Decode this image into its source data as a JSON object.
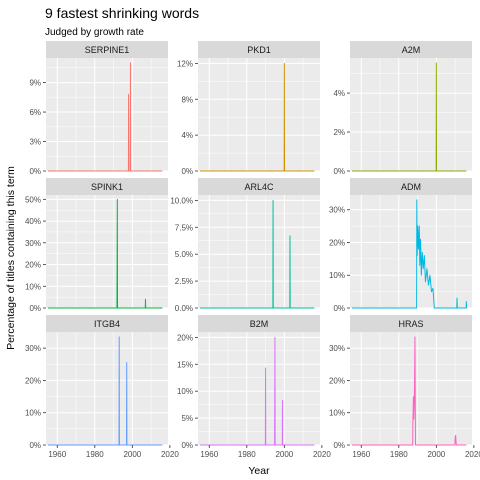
{
  "chart_data": {
    "type": "line",
    "title": "9 fastest shrinking words",
    "subtitle": "Judged by growth rate",
    "xlabel": "Year",
    "ylabel": "Percentage of titles containing this term",
    "xlim": [
      1954,
      2019
    ],
    "x_ticks": [
      1960,
      1980,
      2000,
      2020
    ],
    "x_tick_labels": [
      "1960",
      "1980",
      "2000",
      "2020"
    ],
    "grid": true,
    "legend": "none",
    "panels": [
      {
        "name": "SERPINE1",
        "color": "#F8766D",
        "ylim": [
          0,
          11.5
        ],
        "y_ticks": [
          0,
          3,
          6,
          9
        ],
        "y_tick_labels": [
          "0%",
          "3%",
          "6%",
          "9%"
        ],
        "points": [
          [
            1955,
            0
          ],
          [
            1997.9,
            0
          ],
          [
            1998,
            7.8
          ],
          [
            1998.1,
            0
          ],
          [
            1998.9,
            0
          ],
          [
            1999,
            11
          ],
          [
            1999.1,
            0
          ],
          [
            2016,
            0
          ]
        ]
      },
      {
        "name": "PKD1",
        "color": "#D39200",
        "ylim": [
          0,
          12.6
        ],
        "y_ticks": [
          0,
          4,
          8,
          12
        ],
        "y_tick_labels": [
          "0%",
          "4%",
          "8%",
          "12%"
        ],
        "points": [
          [
            1955,
            0
          ],
          [
            1999.9,
            0
          ],
          [
            2000,
            12
          ],
          [
            2000.1,
            0
          ],
          [
            2016,
            0
          ]
        ]
      },
      {
        "name": "A2M",
        "color": "#93AA00",
        "ylim": [
          0,
          5.8
        ],
        "y_ticks": [
          0,
          2,
          4
        ],
        "y_tick_labels": [
          "0%",
          "2%",
          "4%"
        ],
        "points": [
          [
            1955,
            0
          ],
          [
            1999.9,
            0
          ],
          [
            2000,
            5.55
          ],
          [
            2000.1,
            0
          ],
          [
            2016,
            0
          ]
        ]
      },
      {
        "name": "SPINK1",
        "color": "#00BA38",
        "ylim": [
          0,
          52
        ],
        "y_ticks": [
          0,
          10,
          20,
          30,
          40,
          50
        ],
        "y_tick_labels": [
          "0%",
          "10%",
          "20%",
          "30%",
          "40%",
          "50%"
        ],
        "points": [
          [
            1955,
            0
          ],
          [
            1991.8,
            0
          ],
          [
            1991.9,
            25
          ],
          [
            1992,
            50
          ],
          [
            1992.1,
            0
          ],
          [
            2006.9,
            0
          ],
          [
            2007,
            4
          ],
          [
            2007.1,
            0
          ],
          [
            2016,
            0
          ]
        ]
      },
      {
        "name": "ARL4C",
        "color": "#00C19F",
        "ylim": [
          0,
          10.5
        ],
        "y_ticks": [
          0,
          2.5,
          5,
          7.5,
          10
        ],
        "y_tick_labels": [
          "0.0%",
          "2.5%",
          "5.0%",
          "7.5%",
          "10.0%"
        ],
        "points": [
          [
            1955,
            0
          ],
          [
            1993.9,
            0
          ],
          [
            1994,
            10
          ],
          [
            1994.1,
            0
          ],
          [
            2002.9,
            0
          ],
          [
            2003,
            6.7
          ],
          [
            2003.1,
            0
          ],
          [
            2016,
            0
          ]
        ]
      },
      {
        "name": "ADM",
        "color": "#00B9E3",
        "ylim": [
          0,
          34.5
        ],
        "y_ticks": [
          0,
          10,
          20,
          30
        ],
        "y_tick_labels": [
          "0%",
          "10%",
          "20%",
          "30%"
        ],
        "points": [
          [
            1955,
            0
          ],
          [
            1989.5,
            0
          ],
          [
            1989.6,
            33
          ],
          [
            1989.8,
            16
          ],
          [
            1990.1,
            25
          ],
          [
            1990.5,
            18
          ],
          [
            1990.9,
            25
          ],
          [
            1991.2,
            13
          ],
          [
            1991.6,
            21
          ],
          [
            1992,
            10
          ],
          [
            1992.5,
            17
          ],
          [
            1993,
            12
          ],
          [
            1993.6,
            16
          ],
          [
            1994.2,
            8
          ],
          [
            1995,
            12
          ],
          [
            1995.8,
            7
          ],
          [
            1996.6,
            10
          ],
          [
            1997.4,
            5
          ],
          [
            1998.2,
            6
          ],
          [
            1998.9,
            0
          ],
          [
            2010.9,
            0
          ],
          [
            2011,
            3
          ],
          [
            2011.2,
            0
          ],
          [
            2015.9,
            0
          ],
          [
            2016,
            2
          ],
          [
            2016.1,
            0
          ]
        ]
      },
      {
        "name": "ITGB4",
        "color": "#619CFF",
        "ylim": [
          0,
          35
        ],
        "y_ticks": [
          0,
          10,
          20,
          30
        ],
        "y_tick_labels": [
          "0%",
          "10%",
          "20%",
          "30%"
        ],
        "points": [
          [
            1955,
            0
          ],
          [
            1992.9,
            0
          ],
          [
            1993,
            33.5
          ],
          [
            1993.1,
            0
          ],
          [
            1996.9,
            0
          ],
          [
            1997,
            25.5
          ],
          [
            1997.1,
            0
          ],
          [
            2016,
            0
          ]
        ]
      },
      {
        "name": "B2M",
        "color": "#DB72FB",
        "ylim": [
          0,
          21
        ],
        "y_ticks": [
          0,
          5,
          10,
          15,
          20
        ],
        "y_tick_labels": [
          "0%",
          "5%",
          "10%",
          "15%",
          "20%"
        ],
        "points": [
          [
            1955,
            0
          ],
          [
            1989.9,
            0
          ],
          [
            1990,
            14.3
          ],
          [
            1990.1,
            0
          ],
          [
            1994.8,
            0
          ],
          [
            1994.9,
            10
          ],
          [
            1995,
            20
          ],
          [
            1995.1,
            0
          ],
          [
            1998.9,
            0
          ],
          [
            1999,
            8.3
          ],
          [
            1999.1,
            0
          ],
          [
            2016,
            0
          ]
        ]
      },
      {
        "name": "HRAS",
        "color": "#FF61C3",
        "ylim": [
          0,
          35
        ],
        "y_ticks": [
          0,
          10,
          20,
          30
        ],
        "y_tick_labels": [
          "0%",
          "10%",
          "20%",
          "30%"
        ],
        "points": [
          [
            1955,
            0
          ],
          [
            1987.4,
            0
          ],
          [
            1987.5,
            7
          ],
          [
            1987.8,
            15
          ],
          [
            1988,
            8
          ],
          [
            1988.3,
            14
          ],
          [
            1988.6,
            33.5
          ],
          [
            1988.9,
            0
          ],
          [
            2009.9,
            0
          ],
          [
            2010,
            2
          ],
          [
            2010.3,
            3
          ],
          [
            2010.6,
            0
          ],
          [
            2016,
            0
          ]
        ]
      }
    ]
  }
}
